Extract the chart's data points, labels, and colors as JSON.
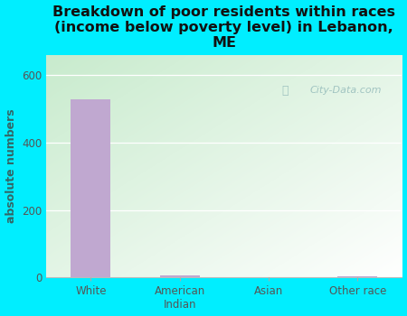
{
  "title": "Breakdown of poor residents within races\n(income below poverty level) in Lebanon,\nME",
  "categories": [
    "White",
    "American\nIndian",
    "Asian",
    "Other race"
  ],
  "values": [
    527,
    7,
    0,
    5
  ],
  "bar_color": "#c0a8d0",
  "ylabel": "absolute numbers",
  "ylim": [
    0,
    660
  ],
  "yticks": [
    0,
    200,
    400,
    600
  ],
  "background_outer": "#00eeff",
  "title_fontsize": 11.5,
  "title_color": "#111111",
  "axis_label_fontsize": 9,
  "axis_label_color": "#336666",
  "tick_fontsize": 8.5,
  "tick_color": "#555555",
  "watermark": "City-Data.com",
  "bar_width": 0.45,
  "grid_color": "#ffffff",
  "plot_bg_topleft": "#cce8cc",
  "plot_bg_bottomright": "#f5fff5"
}
